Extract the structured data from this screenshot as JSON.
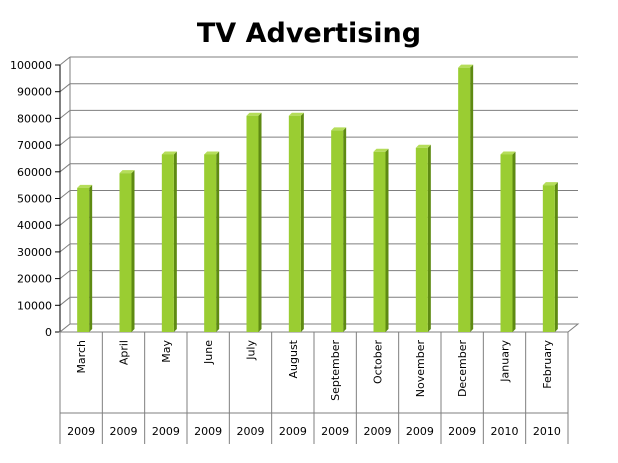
{
  "chart_data": {
    "type": "bar",
    "title": "TV Advertising",
    "categories": [
      "March",
      "April",
      "May",
      "June",
      "July",
      "August",
      "September",
      "October",
      "November",
      "December",
      "January",
      "February"
    ],
    "years": [
      "2009",
      "2009",
      "2009",
      "2009",
      "2009",
      "2009",
      "2009",
      "2009",
      "2009",
      "2009",
      "2010",
      "2010"
    ],
    "series": [
      {
        "values": [
          54000,
          59500,
          66500,
          66500,
          81000,
          81000,
          75500,
          67500,
          69000,
          99000,
          66500,
          55000
        ]
      }
    ],
    "yticks": [
      "0",
      "10000",
      "20000",
      "30000",
      "40000",
      "50000",
      "60000",
      "70000",
      "80000",
      "90000",
      "100000"
    ],
    "ylim": [
      0,
      100000
    ],
    "grid": true,
    "colors": {
      "bar_front": "#9acd32",
      "bar_side": "#5e8a12",
      "bar_top": "#b5dd5a",
      "grid": "#7f7f7f"
    }
  }
}
